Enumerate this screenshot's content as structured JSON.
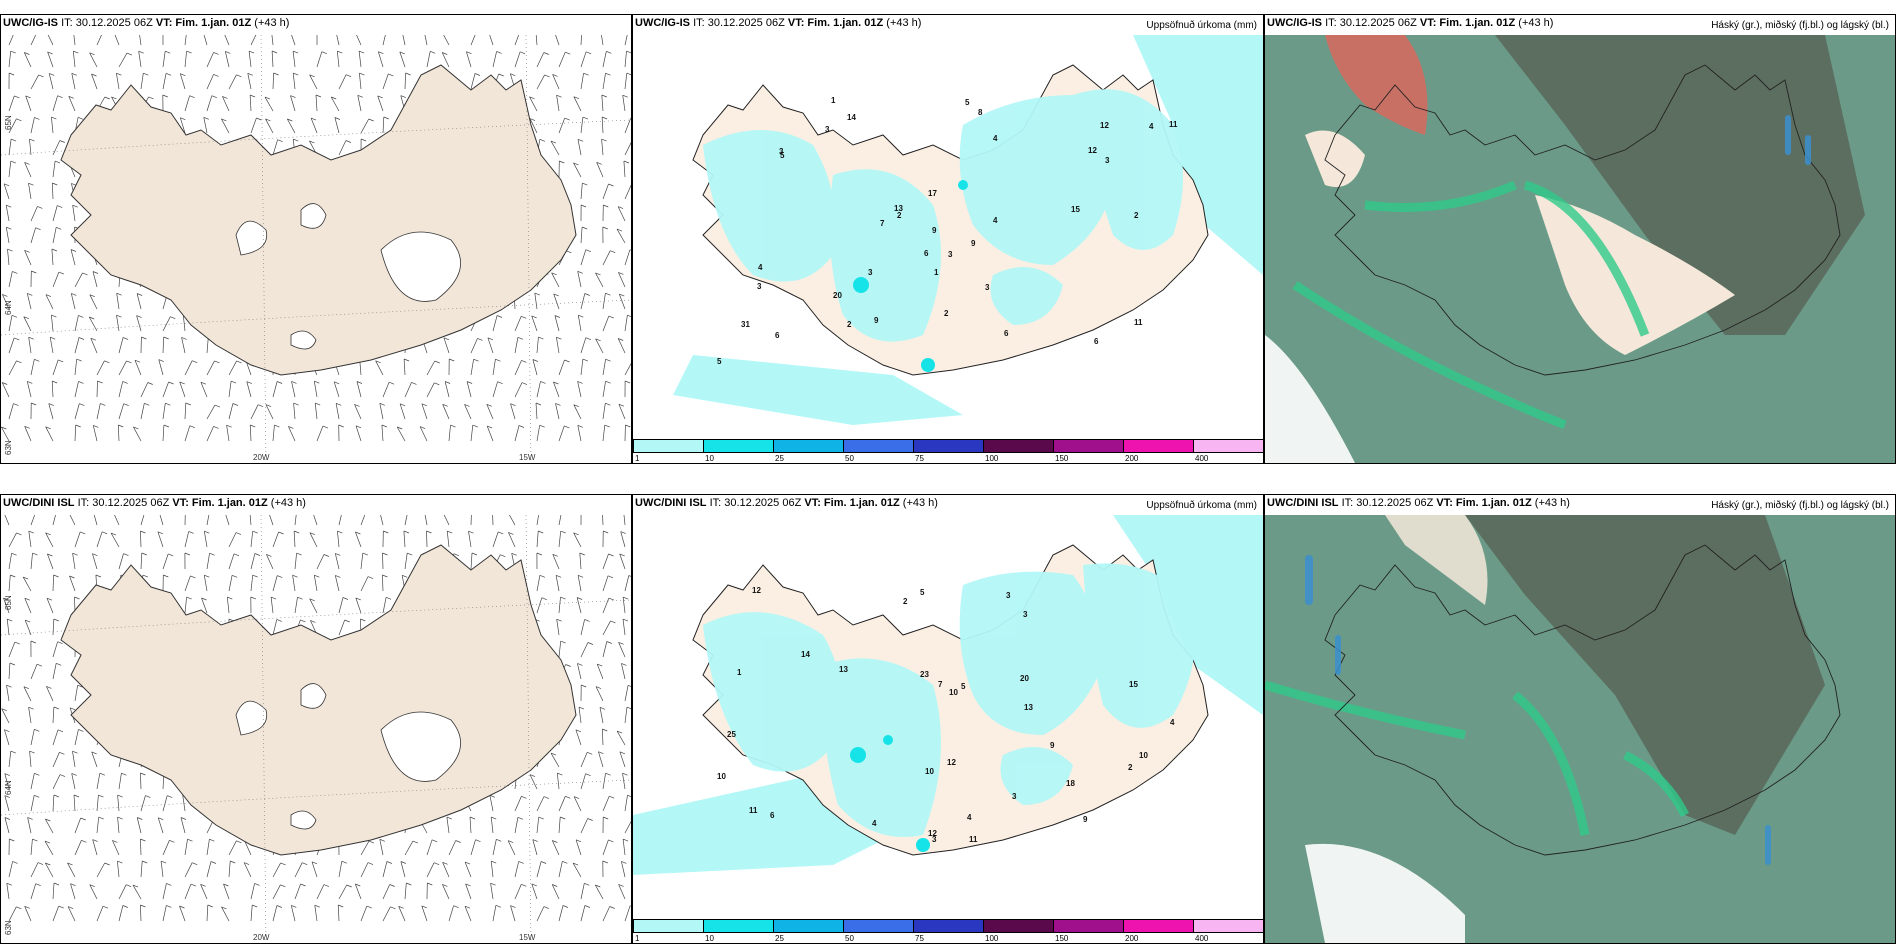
{
  "rows": [
    {
      "model": "UWC/IG-IS",
      "info_it": "IT: 30.12.2025 06Z",
      "info_vt": "VT: Fim. 1.jan. 01Z",
      "info_lead": "(+43 h)",
      "lat_labels": [
        "65N",
        "64N",
        "63N"
      ],
      "lon_labels": [
        "20W",
        "15W"
      ],
      "precip_title": "Uppsöfnuð úrkoma (mm)",
      "cloud_title": "Háský (gr.), miðský (fj.bl.) og lágský (bl.)"
    },
    {
      "model": "UWC/DINI ISL",
      "info_it": "IT: 30.12.2025 06Z",
      "info_vt": "VT: Fim. 1.jan. 01Z",
      "info_lead": "(+43 h)",
      "lat_labels": [
        "65N",
        "64N",
        "63N"
      ],
      "lon_labels": [
        "20W",
        "15W"
      ],
      "precip_title": "Uppsöfnuð úrkoma (mm)",
      "cloud_title": "Háský (gr.), miðský (fj.bl.) og lágský (bl.)"
    }
  ],
  "colorbar": {
    "ticks": [
      "1",
      "10",
      "25",
      "50",
      "75",
      "100",
      "150",
      "200",
      "400"
    ],
    "colors": [
      "#b3f7f7",
      "#16e3e8",
      "#0fb3e6",
      "#3a6ee8",
      "#2a37c0",
      "#5a0a4a",
      "#a0108c",
      "#ee12ae",
      "#f7b5f2"
    ]
  },
  "precip_labels_top": [
    "3",
    "2",
    "2",
    "6",
    "3",
    "5",
    "4",
    "2",
    "3",
    "4",
    "12",
    "14",
    "3",
    "11",
    "9",
    "8",
    "6",
    "3",
    "5",
    "6",
    "4",
    "13",
    "15",
    "17",
    "6",
    "11",
    "20",
    "31",
    "7",
    "12",
    "9",
    "1",
    "2",
    "1",
    "3",
    "4",
    "3",
    "5",
    "9"
  ],
  "precip_labels_bottom": [
    "3",
    "2",
    "7",
    "10",
    "10",
    "4",
    "9",
    "13",
    "11",
    "12",
    "14",
    "25",
    "23",
    "4",
    "5",
    "6",
    "13",
    "10",
    "12",
    "15",
    "12",
    "9",
    "11",
    "3",
    "5",
    "4",
    "20",
    "18",
    "10",
    "2",
    "1",
    "3",
    "3"
  ],
  "colors": {
    "land": "#f2e6d9",
    "land_precip": "#fbefe3",
    "precip_light": "#b3f7f7",
    "cloud_high": "#6b8f80",
    "cloud_mid": "#2fc98a",
    "cloud_low": "#3b8fd0"
  }
}
